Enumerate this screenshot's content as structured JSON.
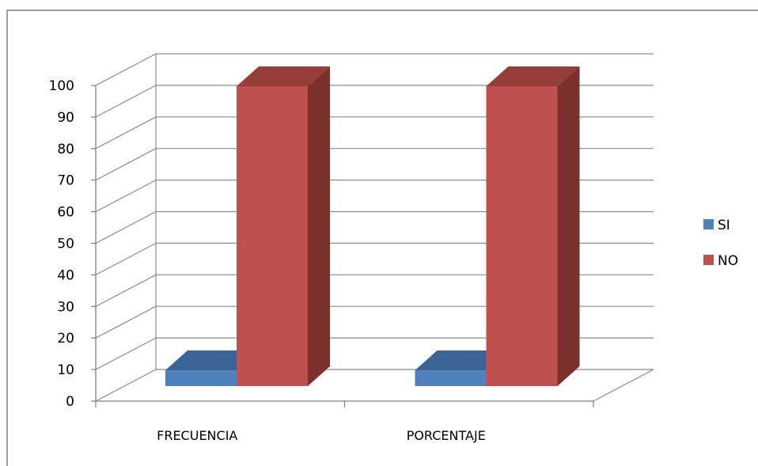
{
  "chart_data": {
    "type": "bar",
    "categories": [
      "FRECUENCIA",
      "PORCENTAJE"
    ],
    "series": [
      {
        "name": "SI",
        "values": [
          5,
          5
        ]
      },
      {
        "name": "NO",
        "values": [
          95,
          95
        ]
      }
    ],
    "ylim": [
      0,
      100
    ],
    "yticks": [
      "0",
      "10",
      "20",
      "30",
      "40",
      "50",
      "60",
      "70",
      "80",
      "90",
      "100"
    ],
    "grid": true,
    "legend_position": "right",
    "title": "",
    "xlabel": "",
    "ylabel": "",
    "colors": {
      "SI": {
        "front": "#4f81bd",
        "top": "#3a6496",
        "side": "#365e8c"
      },
      "NO": {
        "front": "#c0504d",
        "top": "#963c39",
        "side": "#7b302e"
      },
      "grid": "#8c8c8c",
      "frame": "#7f7f7f"
    }
  }
}
